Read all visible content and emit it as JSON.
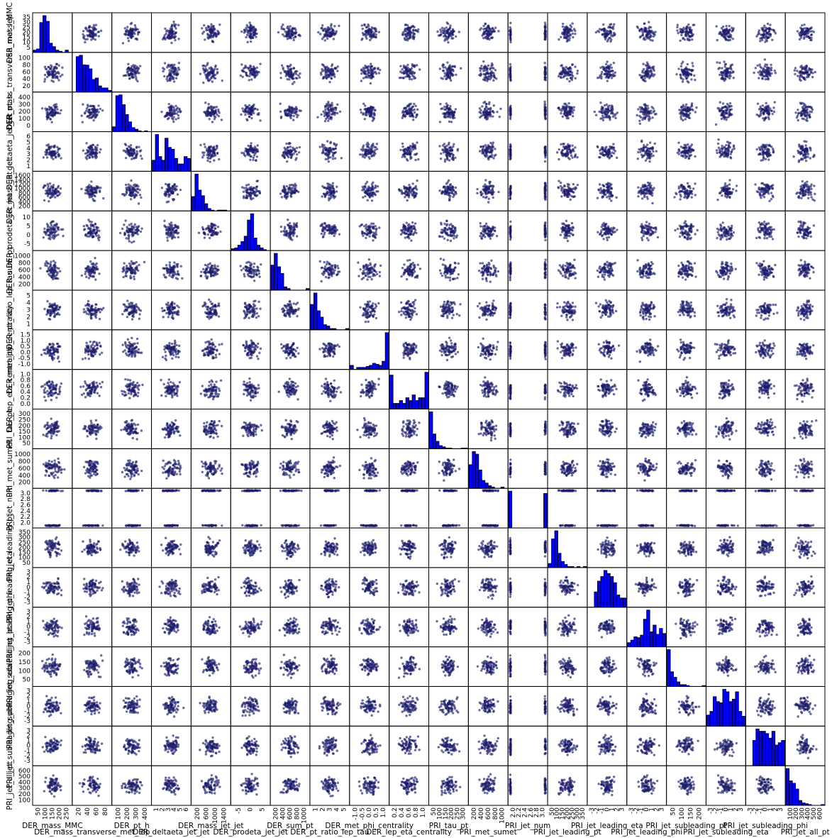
{
  "chart_data": {
    "type": "scatter_matrix",
    "n_vars": 20,
    "variables": [
      "DER_mass_MMC",
      "DER_mass_transverse_met_lep",
      "DER_pt_h",
      "DER_deltaeta_jet_jet",
      "DER_mass_jet_jet",
      "DER_prodeta_jet_jet",
      "DER_sum_pt",
      "DER_pt_ratio_lep_tau",
      "DER_met_phi_centrality",
      "DER_lep_eta_centrality",
      "PRI_tau_pt",
      "PRI_met_sumet",
      "PRI_jet_num",
      "PRI_jet_leading_pt",
      "PRI_jet_leading_eta",
      "PRI_jet_leading_phi",
      "PRI_jet_subleading_pt",
      "PRI_jet_subleading_eta",
      "PRI_jet_subleading_phi",
      "PRI_jet_all_pt"
    ],
    "x_labels": [
      "DER_mass_MMC",
      "DER_mass_transverse_met_lep",
      "DER_pt_h",
      "DER_deltaeta_jet_jet",
      "DER_mass_jet_jet",
      "DER_prodeta_jet_jet",
      "DER_sum_pt",
      "DER_pt_ratio_lep_tau",
      "DER_met_phi_centrality",
      "DER_lep_eta_centrality",
      "PRI_tau_pt",
      "PRI_met_sumet",
      "PRI_jet_num",
      "PRI_jet_leading_pt",
      "PRI_jet_leading_eta",
      "PRI_jet_leading_phi",
      "PRI_jet_subleading_pt",
      "PRI_jet_subleading_eta",
      "PRI_jet_subleading_phi",
      "PRI_jet_all_pt"
    ],
    "y_labels": [
      "DER_mass_MMC",
      "DER_mass_transverse_met_lep",
      "DER_pt_h",
      "DER_deltaeta_jet_jet",
      "DER_mass_jet_jet",
      "DER_prodeta_jet_jet",
      "DER_sum_pt",
      "DER_pt_ratio_lep_tau",
      "DER_met_phi_centrality",
      "DER_lep_eta_centrality",
      "PRI_tau_pt",
      "PRI_met_sumet",
      "PRI_jet_num",
      "PRI_jet_leading_pt",
      "PRI_jet_leading_eta",
      "PRI_jet_leading_phi",
      "PRI_jet_subleading_pt",
      "PRI_jet_subleading_eta",
      "PRI_jet_subleading_phi",
      "PRI_jet_all_pt"
    ],
    "x_ticks": [
      [
        "50",
        "100",
        "150",
        "200",
        "250"
      ],
      [
        "20",
        "40",
        "60",
        "80"
      ],
      [
        "100",
        "200",
        "300",
        "400"
      ],
      [
        "1",
        "2",
        "3",
        "4",
        "5",
        "6"
      ],
      [
        "200",
        "600",
        "1000",
        "1400"
      ],
      [
        "-5",
        "0",
        "5"
      ],
      [
        "200",
        "400",
        "600",
        "800",
        "1000"
      ],
      [
        "1",
        "2",
        "3",
        "4",
        "5"
      ],
      [
        "-1.0",
        "-0.5",
        "0.0",
        "0.5",
        "1.0"
      ],
      [
        "0.2",
        "0.4",
        "0.6",
        "0.8",
        "1.0"
      ],
      [
        "50",
        "100",
        "150",
        "200",
        "250",
        "300"
      ],
      [
        "200",
        "400",
        "600",
        "800",
        "1000"
      ],
      [
        "2.0",
        "2.2",
        "2.4",
        "2.6",
        "2.8",
        "3.0"
      ],
      [
        "50",
        "100",
        "150",
        "200",
        "250",
        "300",
        "350"
      ],
      [
        "-3",
        "-2",
        "-1",
        "0",
        "1",
        "2",
        "3"
      ],
      [
        "-3",
        "-2",
        "-1",
        "0",
        "1",
        "2",
        "3"
      ],
      [
        "50",
        "100",
        "150",
        "200"
      ],
      [
        "-3",
        "-2",
        "-1",
        "0",
        "1",
        "2",
        "3"
      ],
      [
        "-3",
        "-2",
        "-1",
        "0",
        "1",
        "2",
        "3"
      ],
      [
        "100",
        "200",
        "300",
        "400",
        "500",
        "600"
      ]
    ],
    "y_ticks": [
      [
        "5",
        "10",
        "15",
        "20",
        "25",
        "30",
        "35"
      ],
      [
        "20",
        "40",
        "60",
        "80",
        "100"
      ],
      [
        "0",
        "100",
        "200",
        "300",
        "400"
      ],
      [
        "1",
        "2",
        "3",
        "4",
        "5",
        "6"
      ],
      [
        "200",
        "400",
        "600",
        "800",
        "1000",
        "1200",
        "1400",
        "1600"
      ],
      [
        "-5",
        "0",
        "5",
        "10"
      ],
      [
        "200",
        "400",
        "600",
        "800",
        "1000"
      ],
      [
        "1",
        "2",
        "3",
        "4",
        "5"
      ],
      [
        "-1.0",
        "-0.5",
        "0.0",
        "0.5",
        "1.0",
        "1.5"
      ],
      [
        "0.0",
        "0.2",
        "0.4",
        "0.6",
        "0.8",
        "1.0"
      ],
      [
        "50",
        "100",
        "150",
        "200",
        "250",
        "300"
      ],
      [
        "200",
        "400",
        "600",
        "800",
        "1000"
      ],
      [
        "2.0",
        "2.2",
        "2.4",
        "2.6",
        "2.8",
        "3.0"
      ],
      [
        "50",
        "100",
        "150",
        "200",
        "250",
        "300",
        "350"
      ],
      [
        "-3",
        "-2",
        "-1",
        "0",
        "1",
        "2",
        "3"
      ],
      [
        "-3",
        "-2",
        "-1",
        "0",
        "1",
        "2",
        "3"
      ],
      [
        "50",
        "100",
        "150",
        "200"
      ],
      [
        "-3",
        "-2",
        "-1",
        "0",
        "1",
        "2",
        "3"
      ],
      [
        "-3",
        "-2",
        "-1",
        "0",
        "1",
        "2",
        "3"
      ],
      [
        "100",
        "200",
        "300",
        "400",
        "500",
        "600"
      ]
    ],
    "histograms": [
      [
        2,
        3,
        26,
        32,
        27,
        8,
        5,
        2,
        1,
        0,
        2,
        0
      ],
      [
        0,
        104,
        108,
        80,
        79,
        68,
        37,
        41,
        18,
        12,
        12,
        5
      ],
      [
        6,
        44,
        45,
        33,
        21,
        12,
        5,
        3,
        1,
        0,
        1,
        0
      ],
      [
        6,
        20,
        8,
        6,
        18,
        13,
        12,
        7,
        4,
        4,
        8,
        7
      ],
      [
        18,
        46,
        26,
        19,
        9,
        3,
        1,
        0,
        1,
        1,
        1,
        0
      ],
      [
        2,
        3,
        6,
        10,
        16,
        34,
        41,
        14,
        6,
        3,
        1,
        0
      ],
      [
        15,
        22,
        14,
        10,
        2,
        1,
        0,
        0,
        0,
        0,
        0,
        1
      ],
      [
        20,
        29,
        15,
        10,
        4,
        3,
        1,
        1,
        0,
        0,
        0,
        1
      ],
      [
        4,
        0,
        2,
        2,
        2,
        3,
        4,
        6,
        5,
        4,
        8,
        36
      ],
      [
        12,
        2,
        2,
        3,
        2,
        4,
        3,
        5,
        3,
        4,
        4,
        13
      ],
      [
        60,
        24,
        12,
        5,
        3,
        1,
        1,
        0,
        0,
        0,
        1,
        1
      ],
      [
        18,
        28,
        26,
        14,
        6,
        4,
        2,
        1,
        0,
        0,
        1,
        0
      ],
      [
        48,
        0,
        0,
        0,
        0,
        0,
        0,
        0,
        0,
        0,
        0,
        45
      ],
      [
        4,
        28,
        36,
        14,
        6,
        3,
        1,
        1,
        0,
        1,
        0,
        1
      ],
      [
        0,
        0,
        10,
        17,
        20,
        24,
        22,
        20,
        16,
        8,
        6,
        6
      ],
      [
        5,
        8,
        12,
        11,
        14,
        33,
        44,
        18,
        26,
        15,
        22,
        16
      ],
      [
        40,
        16,
        10,
        5,
        2,
        2,
        1,
        0,
        0,
        0,
        0,
        1
      ],
      [
        9,
        12,
        24,
        20,
        19,
        30,
        28,
        20,
        22,
        28,
        12,
        8
      ],
      [
        0,
        0,
        11,
        16,
        15,
        15,
        14,
        12,
        15,
        9,
        10,
        11
      ],
      [
        45,
        30,
        27,
        20,
        6,
        3,
        2,
        1,
        0,
        0,
        0,
        1
      ]
    ]
  }
}
